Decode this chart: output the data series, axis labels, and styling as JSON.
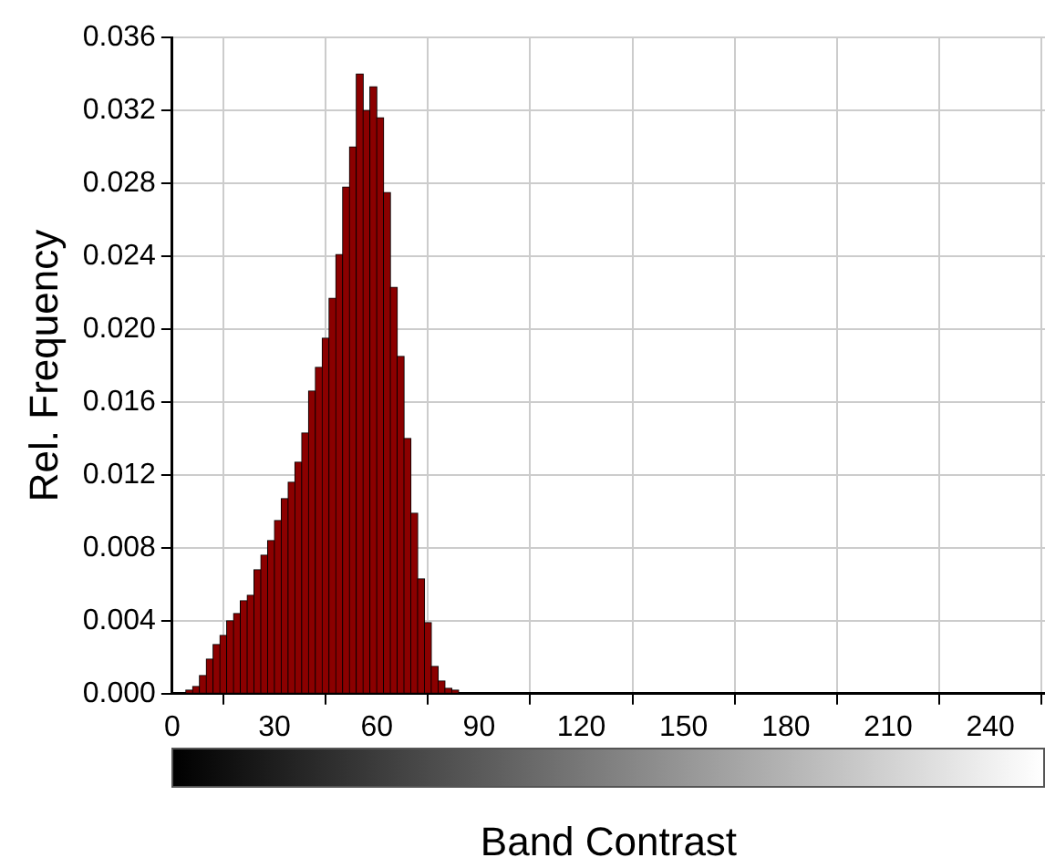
{
  "chart_data": {
    "type": "histogram",
    "xlabel": "Band Contrast",
    "ylabel": "Rel. Frequency",
    "bins": [
      4,
      6,
      8,
      10,
      12,
      14,
      16,
      18,
      20,
      22,
      24,
      26,
      28,
      30,
      32,
      34,
      36,
      38,
      40,
      42,
      44,
      46,
      48,
      50,
      52,
      54,
      56,
      58,
      60,
      62,
      64,
      66,
      68,
      70,
      72,
      74,
      76,
      78,
      80,
      82,
      84
    ],
    "values": [
      0.0002,
      0.0004,
      0.001,
      0.0019,
      0.0027,
      0.0032,
      0.004,
      0.0044,
      0.0051,
      0.0054,
      0.0068,
      0.0076,
      0.0084,
      0.0095,
      0.0107,
      0.0116,
      0.0127,
      0.0143,
      0.0166,
      0.0179,
      0.0195,
      0.0217,
      0.0241,
      0.0278,
      0.03,
      0.034,
      0.032,
      0.0333,
      0.0316,
      0.0275,
      0.0223,
      0.0185,
      0.014,
      0.0099,
      0.0063,
      0.0039,
      0.0015,
      0.0007,
      0.0003,
      0.0002
    ],
    "color": "#8b0000",
    "xlim": [
      0,
      256
    ],
    "xticks": [
      0,
      30,
      60,
      90,
      120,
      150,
      180,
      210,
      240
    ],
    "ylim": [
      0,
      0.036
    ],
    "yticks": [
      {
        "value": 0,
        "label": "0.000"
      },
      {
        "value": 0.004,
        "label": "0.004"
      },
      {
        "value": 0.008,
        "label": "0.008"
      },
      {
        "value": 0.012,
        "label": "0.012"
      },
      {
        "value": 0.016,
        "label": "0.016"
      },
      {
        "value": 0.02,
        "label": "0.020"
      },
      {
        "value": 0.024,
        "label": "0.024"
      },
      {
        "value": 0.028,
        "label": "0.028"
      },
      {
        "value": 0.032,
        "label": "0.032"
      },
      {
        "value": 0.036,
        "label": "0.036"
      }
    ],
    "grid": true
  }
}
